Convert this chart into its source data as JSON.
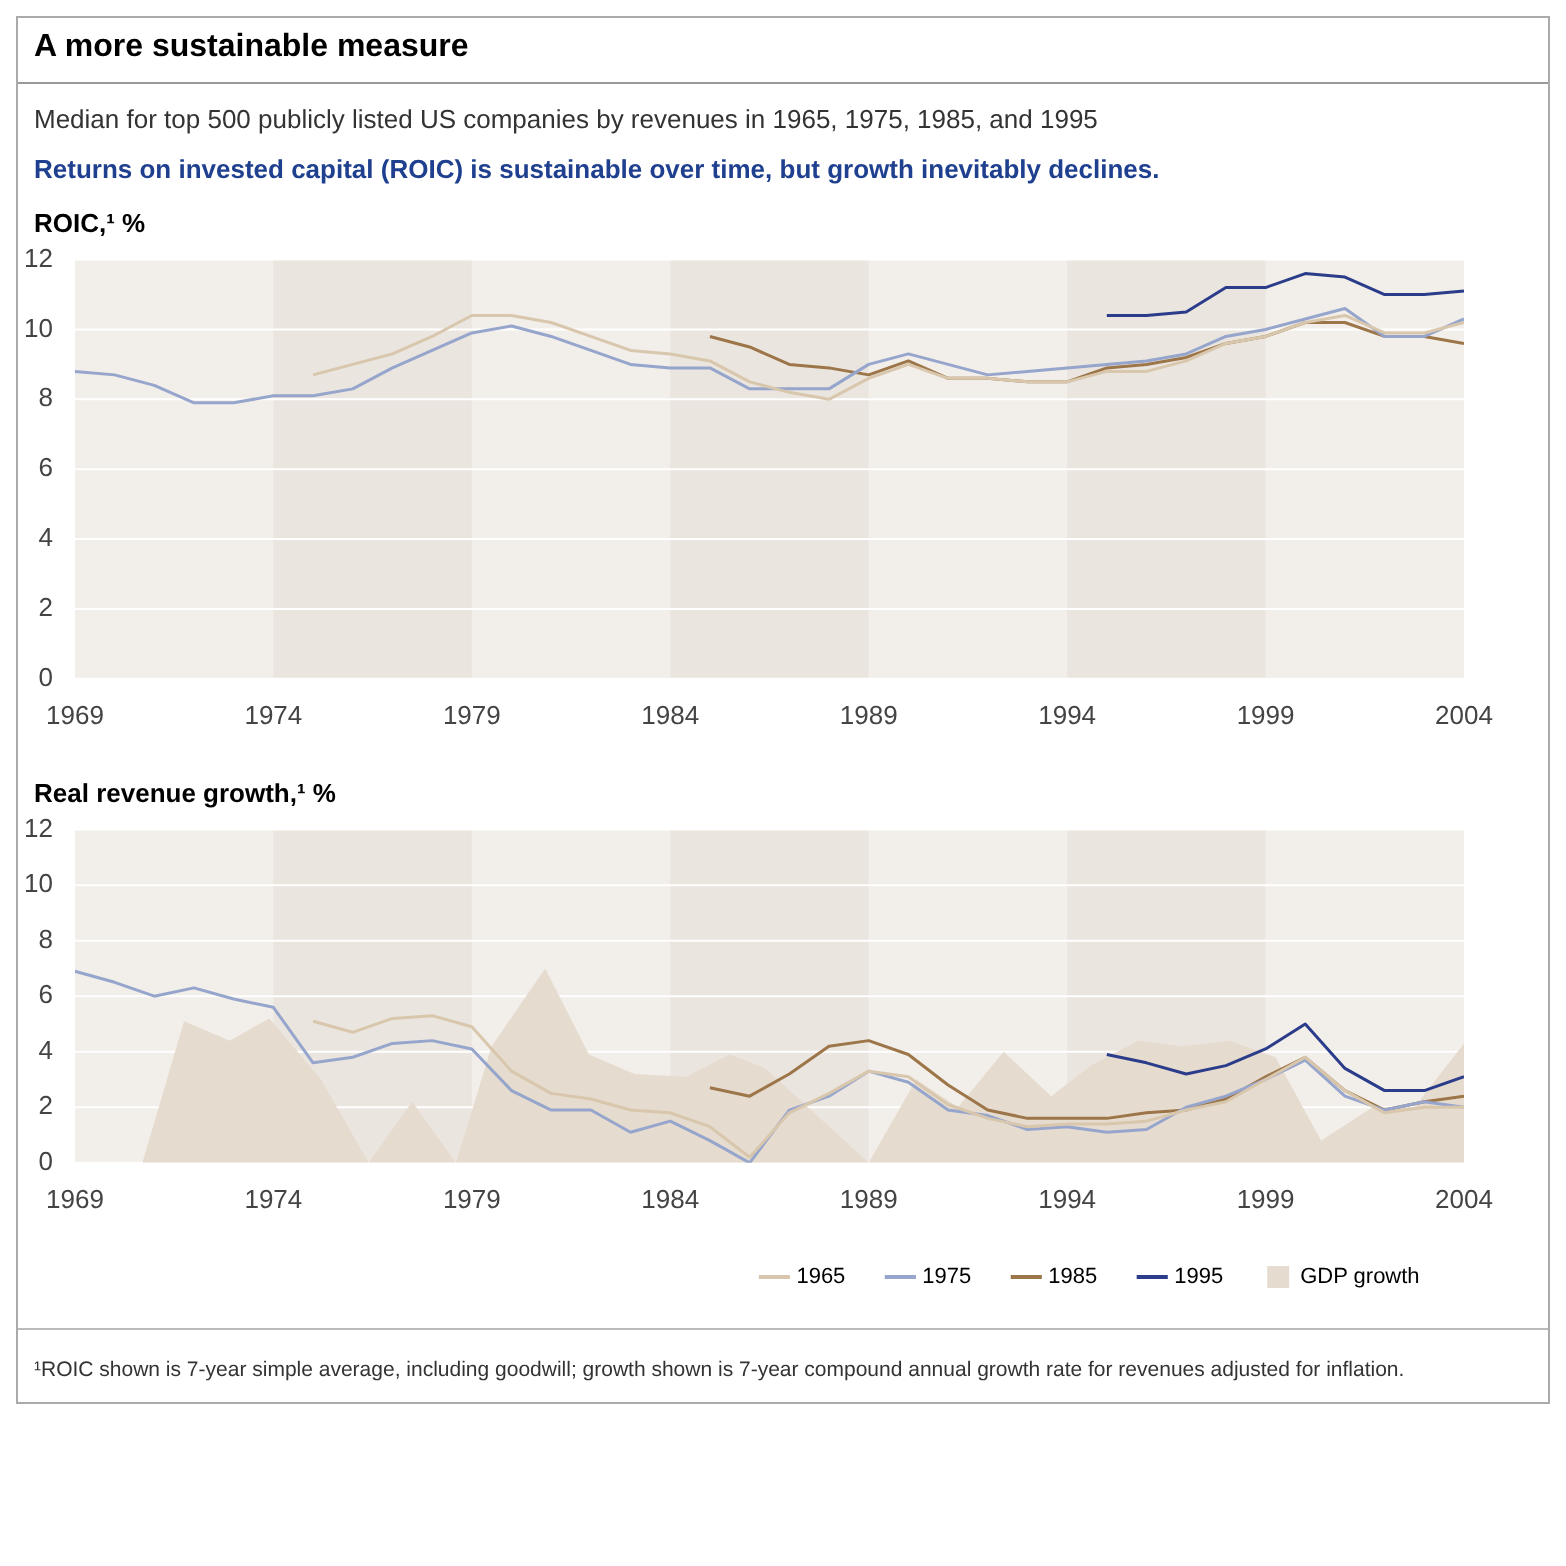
{
  "chart_data": [
    {
      "type": "line",
      "title": "A more sustainable measure",
      "subtitle": "Median for top 500 publicly listed US companies by revenues in 1965, 1975, 1985, and 1995",
      "annotations": [
        "Returns on invested capital (ROIC) is sustainable over time, but growth inevitably declines."
      ],
      "ylabel": "ROIC,¹ %",
      "x": [
        1969,
        1970,
        1971,
        1972,
        1973,
        1974,
        1975,
        1976,
        1977,
        1978,
        1979,
        1980,
        1981,
        1982,
        1983,
        1984,
        1985,
        1986,
        1987,
        1988,
        1989,
        1990,
        1991,
        1992,
        1993,
        1994,
        1995,
        1996,
        1997,
        1998,
        1999,
        2000,
        2001,
        2002,
        2003,
        2004
      ],
      "xlim": [
        1969,
        2004
      ],
      "xticks": [
        1969,
        1974,
        1979,
        1984,
        1989,
        1994,
        1999,
        2004
      ],
      "ylim": [
        0,
        12
      ],
      "yticks": [
        0,
        2,
        4,
        6,
        8,
        10,
        12
      ],
      "grid": "y",
      "legend": false,
      "bands": [
        {
          "axis": "x",
          "from": 1974,
          "to": 1979,
          "color": "#ebe5df"
        },
        {
          "axis": "x",
          "from": 1984,
          "to": 1989,
          "color": "#ebe5df"
        },
        {
          "axis": "x",
          "from": 1994,
          "to": 1999,
          "color": "#ebe5df"
        }
      ],
      "series": [
        {
          "color": "#d8c7ad",
          "values": [
            null,
            null,
            null,
            null,
            null,
            null,
            8.7,
            9.0,
            9.3,
            9.8,
            10.4,
            10.4,
            10.2,
            9.8,
            9.4,
            9.3,
            9.1,
            8.5,
            8.2,
            8.0,
            8.6,
            9.0,
            8.6,
            8.6,
            8.5,
            8.5,
            8.8,
            8.8,
            9.1,
            9.6,
            9.8,
            10.2,
            10.4,
            9.9,
            9.9,
            10.2
          ]
        },
        {
          "color": "#96a5cc",
          "values": [
            8.8,
            8.7,
            8.4,
            7.9,
            7.9,
            8.1,
            8.1,
            8.3,
            8.9,
            9.4,
            9.9,
            10.1,
            9.8,
            9.4,
            9.0,
            8.9,
            8.9,
            8.3,
            8.3,
            8.3,
            9.0,
            9.3,
            9.0,
            8.7,
            8.8,
            8.9,
            9.0,
            9.1,
            9.3,
            9.8,
            10.0,
            10.3,
            10.6,
            9.8,
            9.8,
            10.3
          ]
        },
        {
          "color": "#9c7548",
          "values": [
            null,
            null,
            null,
            null,
            null,
            null,
            null,
            null,
            null,
            null,
            null,
            null,
            null,
            null,
            null,
            null,
            9.8,
            9.5,
            9.0,
            8.9,
            8.7,
            9.1,
            8.6,
            8.6,
            8.5,
            8.5,
            8.9,
            9.0,
            9.2,
            9.6,
            9.8,
            10.2,
            10.2,
            9.8,
            9.8,
            9.6
          ]
        },
        {
          "color": "#2b3d8a",
          "values": [
            null,
            null,
            null,
            null,
            null,
            null,
            null,
            null,
            null,
            null,
            null,
            null,
            null,
            null,
            null,
            null,
            null,
            null,
            null,
            null,
            null,
            null,
            null,
            null,
            null,
            null,
            10.4,
            10.4,
            10.5,
            11.2,
            11.2,
            11.6,
            11.5,
            11.0,
            11.0,
            11.1
          ]
        }
      ]
    },
    {
      "type": "line",
      "ylabel": "Real revenue growth,¹ %",
      "annotations": [
        "¹ROIC shown is 7-year simple average, including goodwill; growth shown is 7-year compound annual growth rate for revenues adjusted for inflation."
      ],
      "x": [
        1969,
        1970,
        1971,
        1972,
        1973,
        1974,
        1975,
        1976,
        1977,
        1978,
        1979,
        1980,
        1981,
        1982,
        1983,
        1984,
        1985,
        1986,
        1987,
        1988,
        1989,
        1990,
        1991,
        1992,
        1993,
        1994,
        1995,
        1996,
        1997,
        1998,
        1999,
        2000,
        2001,
        2002,
        2003,
        2004
      ],
      "xlim": [
        1969,
        2004
      ],
      "xticks": [
        1969,
        1974,
        1979,
        1984,
        1989,
        1994,
        1999,
        2004
      ],
      "ylim": [
        0,
        12
      ],
      "yticks": [
        0,
        2,
        4,
        6,
        8,
        10,
        12
      ],
      "grid": "y",
      "legend": "bottom",
      "bands": [
        {
          "axis": "x",
          "from": 1974,
          "to": 1979,
          "color": "#ebe5df"
        },
        {
          "axis": "x",
          "from": 1984,
          "to": 1989,
          "color": "#ebe5df"
        },
        {
          "axis": "x",
          "from": 1994,
          "to": 1999,
          "color": "#ebe5df"
        }
      ],
      "series": [
        {
          "name": "1965",
          "color": "#d8c7ad",
          "values": [
            null,
            null,
            null,
            null,
            null,
            null,
            5.1,
            4.7,
            5.2,
            5.3,
            4.9,
            3.3,
            2.5,
            2.3,
            1.9,
            1.8,
            1.3,
            0.2,
            1.8,
            2.5,
            3.3,
            3.1,
            2.1,
            1.6,
            1.3,
            1.4,
            1.4,
            1.5,
            1.9,
            2.2,
            3.0,
            3.8,
            2.6,
            1.8,
            2.0,
            2.0
          ]
        },
        {
          "name": "1975",
          "color": "#96a5cc",
          "values": [
            6.9,
            6.5,
            6.0,
            6.3,
            5.9,
            5.6,
            3.6,
            3.8,
            4.3,
            4.4,
            4.1,
            2.6,
            1.9,
            1.9,
            1.1,
            1.5,
            0.8,
            0.0,
            1.9,
            2.4,
            3.3,
            2.9,
            1.9,
            1.7,
            1.2,
            1.3,
            1.1,
            1.2,
            2.0,
            2.4,
            3.0,
            3.7,
            2.4,
            1.9,
            2.2,
            2.0
          ]
        },
        {
          "name": "1985",
          "color": "#9c7548",
          "values": [
            null,
            null,
            null,
            null,
            null,
            null,
            null,
            null,
            null,
            null,
            null,
            null,
            null,
            null,
            null,
            null,
            2.7,
            2.4,
            3.2,
            4.2,
            4.4,
            3.9,
            2.8,
            1.9,
            1.6,
            1.6,
            1.6,
            1.8,
            1.9,
            2.3,
            3.1,
            3.8,
            2.6,
            1.9,
            2.2,
            2.4
          ]
        },
        {
          "name": "1995",
          "color": "#2b3d8a",
          "values": [
            null,
            null,
            null,
            null,
            null,
            null,
            null,
            null,
            null,
            null,
            null,
            null,
            null,
            null,
            null,
            null,
            null,
            null,
            null,
            null,
            null,
            null,
            null,
            null,
            null,
            null,
            3.9,
            3.6,
            3.2,
            3.5,
            4.1,
            5.0,
            3.4,
            2.6,
            2.6,
            3.1
          ]
        },
        {
          "name": "GDP growth",
          "type": "area",
          "color": "#e6dbcf",
          "x": [
            1970.7,
            1971.75,
            1972.9,
            1973.9,
            1975.2,
            1976.4,
            1977.5,
            1978.6,
            1979.5,
            1980.85,
            1981.95,
            1983.1,
            1984.4,
            1985.5,
            1986.4,
            1989,
            1990.2,
            1991.25,
            1992.4,
            1993.6,
            1994.6,
            1995.8,
            1996.9,
            1998.1,
            1999.25,
            2000.4,
            2001.7,
            2002.75,
            2004
          ],
          "values": [
            0,
            5.1,
            4.4,
            5.2,
            3.0,
            0,
            2.2,
            0,
            4.2,
            7.0,
            3.9,
            3.2,
            3.1,
            3.9,
            3.4,
            0,
            3.0,
            2.0,
            4.0,
            2.4,
            3.5,
            4.4,
            4.2,
            4.4,
            3.8,
            0.8,
            2.0,
            2.0,
            4.3
          ]
        }
      ]
    }
  ]
}
